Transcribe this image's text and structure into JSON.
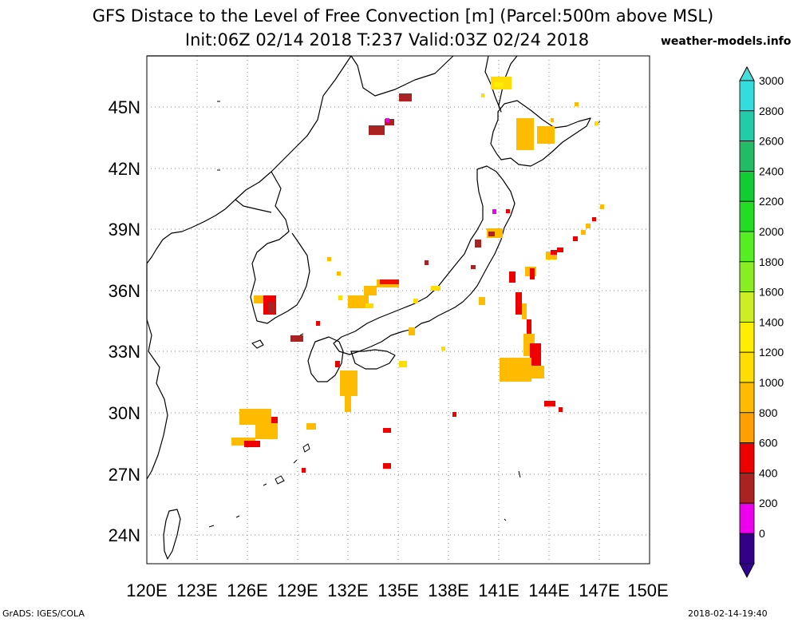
{
  "title": {
    "line1": "GFS Distace to the Level of Free Convection [m] (Parcel:500m above MSL)",
    "line2": "Init:06Z 02/14 2018 T:237 Valid:03Z 02/24 2018"
  },
  "site": "weather-models.info",
  "footer": {
    "left": "GrADS: IGES/COLA",
    "right": "2018-02-14-19:40"
  },
  "map": {
    "lon_range": [
      120,
      150
    ],
    "lat_range": [
      22.5,
      47.5
    ],
    "lon_ticks": [
      "120E",
      "123E",
      "126E",
      "129E",
      "132E",
      "135E",
      "138E",
      "141E",
      "144E",
      "147E",
      "150E"
    ],
    "lat_ticks": [
      "45N",
      "42N",
      "39N",
      "36N",
      "33N",
      "30N",
      "27N",
      "24N"
    ],
    "grid": "dotted"
  },
  "colorbar": {
    "labels": [
      "3000",
      "2800",
      "2600",
      "2400",
      "2200",
      "2000",
      "1800",
      "1600",
      "1400",
      "1200",
      "1000",
      "800",
      "600",
      "400",
      "200",
      "0"
    ],
    "colors": [
      "#33dddd",
      "#22ccaa",
      "#22bb66",
      "#11cc33",
      "#22dd22",
      "#55ee22",
      "#88ee22",
      "#ccee22",
      "#ffee00",
      "#ffdd00",
      "#ffbb00",
      "#ffa000",
      "#ee0000",
      "#aa2222",
      "#ee00ee",
      "#330088"
    ],
    "top_arrow": "#44dddd",
    "bottom_arrow": "#330088"
  }
}
